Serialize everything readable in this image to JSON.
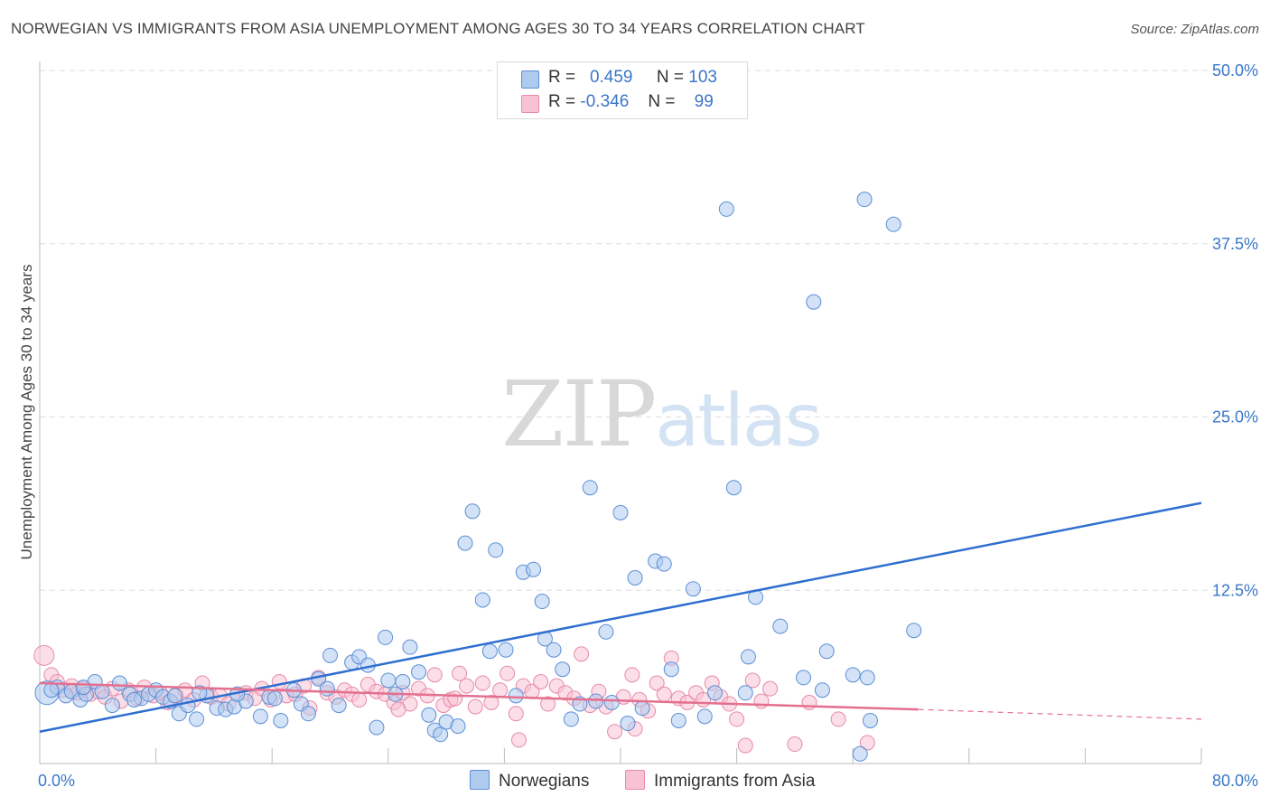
{
  "title": "NORWEGIAN VS IMMIGRANTS FROM ASIA UNEMPLOYMENT AMONG AGES 30 TO 34 YEARS CORRELATION CHART",
  "source": "Source: ZipAtlas.com",
  "watermark": {
    "zip": "ZIP",
    "atlas": "atlas"
  },
  "legend": {
    "row1": {
      "r_label": "R =",
      "r_value": "0.459",
      "n_label": "N =",
      "n_value": "103"
    },
    "row2": {
      "r_label": "R =",
      "r_value": "-0.346",
      "n_label": "N =",
      "n_value": "99"
    }
  },
  "bottom_legend": {
    "series1": "Norwegians",
    "series2": "Immigrants from Asia"
  },
  "colors": {
    "blue_fill": "#aecbee",
    "blue_stroke": "#5b8fd6",
    "blue_line": "#2f6fd0",
    "pink_fill": "#f7c2d3",
    "pink_stroke": "#e88aa8",
    "pink_line": "#e4708f",
    "grid": "#dddddd",
    "tick_label": "#3a77c8"
  },
  "chart_data": {
    "type": "scatter",
    "title": "NORWEGIAN VS IMMIGRANTS FROM ASIA UNEMPLOYMENT AMONG AGES 30 TO 34 YEARS CORRELATION CHART",
    "xlabel": "",
    "ylabel": "Unemployment Among Ages 30 to 34 years",
    "xlim": [
      0,
      80
    ],
    "ylim": [
      0,
      50
    ],
    "x_tick_labels": [
      "0.0%",
      "80.0%"
    ],
    "y_ticks": [
      12.5,
      25.0,
      37.5,
      50.0
    ],
    "y_tick_labels": [
      "12.5%",
      "25.0%",
      "37.5%",
      "50.0%"
    ],
    "series": [
      {
        "name": "Norwegians",
        "r": 0.459,
        "n": 103,
        "trend": {
          "x": [
            0,
            80
          ],
          "y": [
            2.3,
            18.8
          ]
        },
        "points": [
          [
            0.5,
            5.1
          ],
          [
            1.2,
            5.5
          ],
          [
            1.8,
            4.9
          ],
          [
            2.2,
            5.2
          ],
          [
            2.8,
            4.6
          ],
          [
            3.2,
            5.0
          ],
          [
            3.8,
            5.9
          ],
          [
            4.3,
            5.2
          ],
          [
            5.0,
            4.2
          ],
          [
            5.5,
            5.8
          ],
          [
            6.2,
            5.0
          ],
          [
            7.0,
            4.7
          ],
          [
            7.5,
            5.0
          ],
          [
            8.0,
            5.3
          ],
          [
            8.5,
            4.8
          ],
          [
            9.0,
            4.5
          ],
          [
            9.6,
            3.6
          ],
          [
            10.2,
            4.2
          ],
          [
            10.8,
            3.2
          ],
          [
            11.5,
            4.9
          ],
          [
            12.2,
            4.0
          ],
          [
            12.8,
            3.9
          ],
          [
            13.4,
            4.1
          ],
          [
            14.2,
            4.5
          ],
          [
            15.2,
            3.4
          ],
          [
            15.8,
            4.8
          ],
          [
            16.6,
            3.1
          ],
          [
            17.5,
            5.3
          ],
          [
            18.0,
            4.3
          ],
          [
            18.5,
            3.6
          ],
          [
            19.2,
            6.1
          ],
          [
            20.0,
            7.8
          ],
          [
            20.6,
            4.2
          ],
          [
            21.5,
            7.3
          ],
          [
            22.0,
            7.7
          ],
          [
            22.6,
            7.1
          ],
          [
            23.2,
            2.6
          ],
          [
            23.8,
            9.1
          ],
          [
            24.5,
            5.0
          ],
          [
            25.0,
            5.9
          ],
          [
            25.5,
            8.4
          ],
          [
            26.1,
            6.6
          ],
          [
            26.8,
            3.5
          ],
          [
            27.2,
            2.4
          ],
          [
            27.6,
            2.1
          ],
          [
            28.0,
            3.0
          ],
          [
            28.8,
            2.7
          ],
          [
            29.3,
            15.9
          ],
          [
            29.8,
            18.2
          ],
          [
            30.5,
            11.8
          ],
          [
            31.0,
            8.1
          ],
          [
            31.4,
            15.4
          ],
          [
            32.1,
            8.2
          ],
          [
            32.8,
            4.9
          ],
          [
            33.3,
            13.8
          ],
          [
            34.0,
            14.0
          ],
          [
            34.6,
            11.7
          ],
          [
            34.8,
            9.0
          ],
          [
            35.4,
            8.2
          ],
          [
            36.0,
            6.8
          ],
          [
            36.6,
            3.2
          ],
          [
            37.2,
            4.3
          ],
          [
            37.9,
            19.9
          ],
          [
            38.3,
            4.5
          ],
          [
            39.0,
            9.5
          ],
          [
            39.4,
            4.4
          ],
          [
            40.0,
            18.1
          ],
          [
            40.5,
            2.9
          ],
          [
            41.0,
            13.4
          ],
          [
            41.5,
            4.0
          ],
          [
            42.4,
            14.6
          ],
          [
            43.0,
            14.4
          ],
          [
            43.5,
            6.8
          ],
          [
            44.0,
            3.1
          ],
          [
            45.0,
            12.6
          ],
          [
            45.8,
            3.4
          ],
          [
            46.5,
            5.1
          ],
          [
            47.3,
            40.0
          ],
          [
            47.8,
            19.9
          ],
          [
            48.6,
            5.1
          ],
          [
            48.8,
            7.7
          ],
          [
            49.3,
            12.0
          ],
          [
            51.0,
            9.9
          ],
          [
            52.6,
            6.2
          ],
          [
            53.3,
            33.3
          ],
          [
            53.9,
            5.3
          ],
          [
            54.2,
            8.1
          ],
          [
            56.0,
            6.4
          ],
          [
            56.8,
            40.7
          ],
          [
            57.0,
            6.2
          ],
          [
            57.2,
            3.1
          ],
          [
            58.8,
            38.9
          ],
          [
            60.2,
            9.6
          ],
          [
            0.8,
            5.3
          ],
          [
            3.0,
            5.5
          ],
          [
            6.5,
            4.6
          ],
          [
            9.3,
            4.9
          ],
          [
            11.0,
            5.1
          ],
          [
            13.6,
            5.0
          ],
          [
            16.2,
            4.7
          ],
          [
            19.8,
            5.4
          ],
          [
            24.0,
            6.0
          ],
          [
            56.5,
            0.7
          ]
        ]
      },
      {
        "name": "Immigrants from Asia",
        "r": -0.346,
        "n": 99,
        "trend": {
          "x": [
            0,
            60.5
          ],
          "y": [
            5.8,
            3.9
          ]
        },
        "trend_dashed": {
          "x": [
            60.5,
            80
          ],
          "y": [
            3.9,
            3.2
          ]
        },
        "points": [
          [
            0.3,
            7.8
          ],
          [
            0.8,
            6.4
          ],
          [
            1.2,
            5.9
          ],
          [
            1.6,
            5.3
          ],
          [
            2.2,
            5.6
          ],
          [
            2.6,
            5.1
          ],
          [
            3.0,
            5.4
          ],
          [
            3.5,
            5.0
          ],
          [
            4.0,
            5.2
          ],
          [
            4.5,
            4.8
          ],
          [
            5.0,
            5.4
          ],
          [
            5.6,
            4.5
          ],
          [
            6.1,
            5.3
          ],
          [
            6.7,
            4.7
          ],
          [
            7.2,
            5.5
          ],
          [
            7.8,
            4.9
          ],
          [
            8.3,
            5.1
          ],
          [
            8.8,
            4.4
          ],
          [
            9.4,
            4.9
          ],
          [
            10.0,
            5.3
          ],
          [
            10.6,
            4.6
          ],
          [
            11.2,
            5.8
          ],
          [
            11.8,
            4.8
          ],
          [
            12.4,
            4.9
          ],
          [
            13.0,
            4.3
          ],
          [
            13.6,
            5.0
          ],
          [
            14.2,
            5.1
          ],
          [
            14.8,
            4.7
          ],
          [
            15.3,
            5.4
          ],
          [
            15.9,
            4.6
          ],
          [
            16.5,
            5.9
          ],
          [
            17.0,
            4.9
          ],
          [
            17.6,
            5.0
          ],
          [
            18.2,
            5.6
          ],
          [
            18.6,
            4.0
          ],
          [
            19.2,
            6.2
          ],
          [
            19.8,
            5.1
          ],
          [
            20.4,
            4.8
          ],
          [
            21.0,
            5.3
          ],
          [
            21.5,
            5.0
          ],
          [
            22.0,
            4.6
          ],
          [
            22.6,
            5.7
          ],
          [
            23.2,
            5.2
          ],
          [
            23.8,
            5.0
          ],
          [
            24.4,
            4.4
          ],
          [
            25.0,
            5.1
          ],
          [
            25.5,
            4.3
          ],
          [
            26.1,
            5.4
          ],
          [
            26.7,
            4.9
          ],
          [
            27.2,
            6.4
          ],
          [
            27.8,
            4.2
          ],
          [
            28.3,
            4.6
          ],
          [
            28.9,
            6.5
          ],
          [
            29.4,
            5.6
          ],
          [
            30.0,
            4.1
          ],
          [
            30.5,
            5.8
          ],
          [
            31.1,
            4.4
          ],
          [
            31.7,
            5.3
          ],
          [
            32.2,
            6.5
          ],
          [
            32.8,
            3.6
          ],
          [
            33.3,
            5.6
          ],
          [
            33.9,
            5.2
          ],
          [
            34.5,
            5.9
          ],
          [
            35.0,
            4.3
          ],
          [
            35.6,
            5.6
          ],
          [
            36.2,
            5.1
          ],
          [
            36.8,
            4.7
          ],
          [
            37.3,
            7.9
          ],
          [
            37.9,
            4.2
          ],
          [
            38.5,
            5.2
          ],
          [
            39.0,
            4.1
          ],
          [
            39.6,
            2.3
          ],
          [
            40.2,
            4.8
          ],
          [
            40.8,
            6.4
          ],
          [
            41.3,
            4.6
          ],
          [
            41.9,
            3.8
          ],
          [
            42.5,
            5.8
          ],
          [
            43.0,
            5.0
          ],
          [
            43.5,
            7.6
          ],
          [
            44.0,
            4.7
          ],
          [
            44.6,
            4.4
          ],
          [
            45.2,
            5.1
          ],
          [
            45.7,
            4.6
          ],
          [
            46.3,
            5.8
          ],
          [
            46.9,
            4.8
          ],
          [
            47.5,
            4.3
          ],
          [
            48.0,
            3.2
          ],
          [
            48.6,
            1.3
          ],
          [
            49.1,
            6.0
          ],
          [
            49.7,
            4.5
          ],
          [
            50.3,
            5.4
          ],
          [
            52.0,
            1.4
          ],
          [
            53.0,
            4.4
          ],
          [
            55.0,
            3.2
          ],
          [
            57.0,
            1.5
          ],
          [
            28.6,
            4.7
          ],
          [
            24.7,
            3.9
          ],
          [
            33.0,
            1.7
          ],
          [
            41.0,
            2.5
          ]
        ]
      }
    ]
  }
}
